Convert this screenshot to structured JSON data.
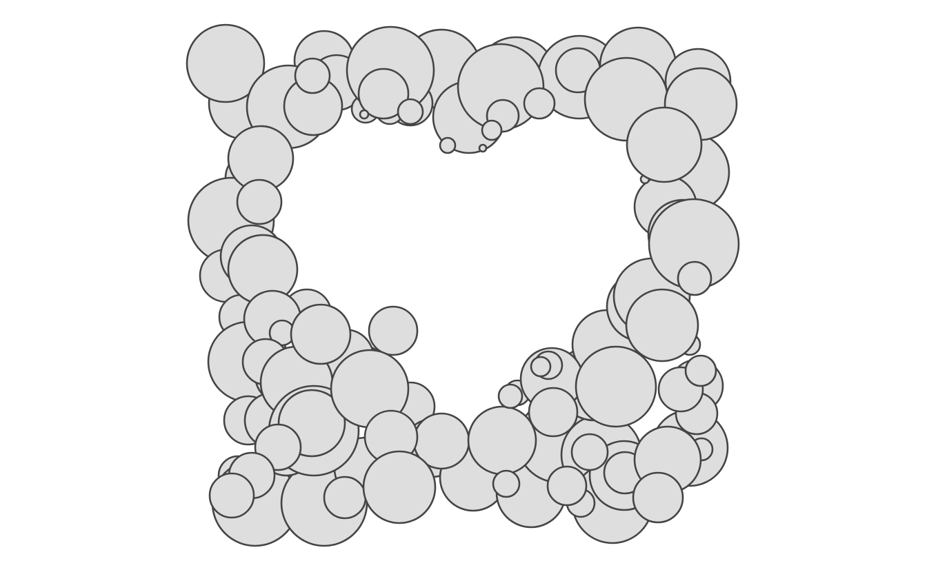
{
  "figure": {
    "description_visible_text": "",
    "fill_color": "#dedede",
    "stroke_color": "#444444",
    "background_color": "#ffffff"
  }
}
